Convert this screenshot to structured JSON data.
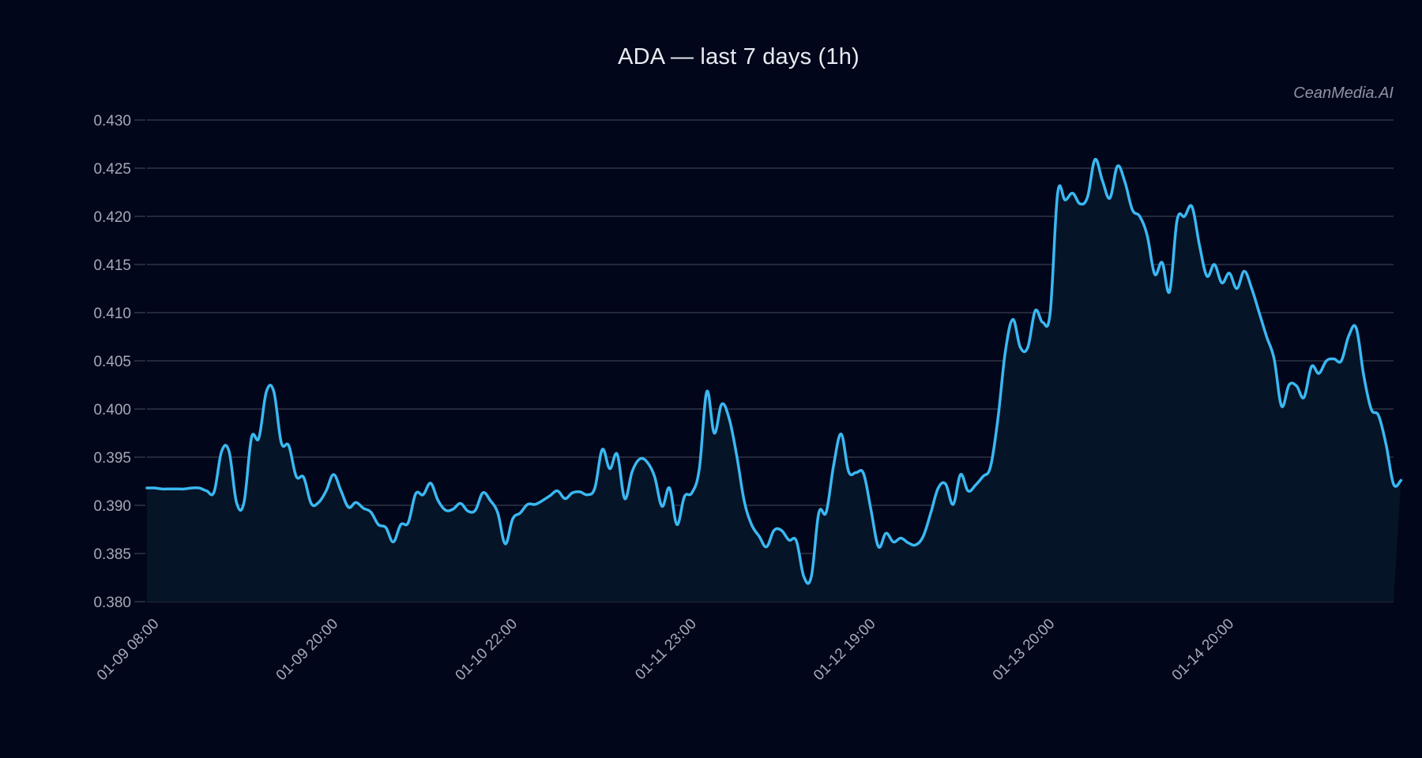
{
  "title": "ADA — last 7 days (1h)",
  "watermark": "CeanMedia.AI",
  "colors": {
    "background": "#02061a",
    "line": "#3ab8f2",
    "fill": "#061427",
    "grid": "#2e3546",
    "tick_text": "#a4a9b6"
  },
  "chart_data": {
    "type": "area",
    "title": "ADA — last 7 days (1h)",
    "xlabel": "",
    "ylabel": "",
    "ylim": [
      0.38,
      0.43
    ],
    "grid": true,
    "legend": null,
    "y_ticks": [
      "0.430",
      "0.425",
      "0.420",
      "0.415",
      "0.410",
      "0.405",
      "0.400",
      "0.395",
      "0.390",
      "0.385",
      "0.380"
    ],
    "x_ticks": [
      {
        "label": "01-09 08:00",
        "index": 0
      },
      {
        "label": "01-09 20:00",
        "index": 24
      },
      {
        "label": "01-10 22:00",
        "index": 48
      },
      {
        "label": "01-11 23:00",
        "index": 72
      },
      {
        "label": "01-12 19:00",
        "index": 96
      },
      {
        "label": "01-13 20:00",
        "index": 120
      },
      {
        "label": "01-14 20:00",
        "index": 144
      }
    ],
    "n_points": 168,
    "series": [
      {
        "name": "ADA",
        "values": [
          0.3918,
          0.3918,
          0.3917,
          0.3917,
          0.3917,
          0.3917,
          0.3918,
          0.3918,
          0.3915,
          0.3914,
          0.3956,
          0.3956,
          0.3903,
          0.3903,
          0.397,
          0.397,
          0.4018,
          0.4018,
          0.3965,
          0.3962,
          0.393,
          0.3929,
          0.3902,
          0.3903,
          0.3915,
          0.3932,
          0.3915,
          0.3898,
          0.3903,
          0.3897,
          0.3893,
          0.388,
          0.3877,
          0.3862,
          0.388,
          0.3882,
          0.3912,
          0.3911,
          0.3923,
          0.3905,
          0.3895,
          0.3896,
          0.3902,
          0.3894,
          0.3895,
          0.3913,
          0.3905,
          0.3892,
          0.386,
          0.3886,
          0.3892,
          0.3901,
          0.3901,
          0.3905,
          0.391,
          0.3915,
          0.3907,
          0.3913,
          0.3914,
          0.3911,
          0.3918,
          0.3958,
          0.3938,
          0.3953,
          0.3907,
          0.3935,
          0.3948,
          0.3945,
          0.393,
          0.3899,
          0.3918,
          0.388,
          0.3909,
          0.3913,
          0.3938,
          0.4018,
          0.3975,
          0.4005,
          0.399,
          0.3952,
          0.3905,
          0.388,
          0.3868,
          0.3857,
          0.3874,
          0.3874,
          0.3864,
          0.3863,
          0.3826,
          0.3826,
          0.3892,
          0.3893,
          0.3942,
          0.3974,
          0.3935,
          0.3934,
          0.3933,
          0.3895,
          0.3857,
          0.3871,
          0.3862,
          0.3866,
          0.3861,
          0.3859,
          0.3868,
          0.3892,
          0.3918,
          0.3922,
          0.3901,
          0.3932,
          0.3915,
          0.3921,
          0.393,
          0.394,
          0.399,
          0.406,
          0.4093,
          0.4064,
          0.4064,
          0.4102,
          0.409,
          0.41,
          0.4224,
          0.4217,
          0.4224,
          0.4213,
          0.422,
          0.4259,
          0.4237,
          0.4219,
          0.4252,
          0.4236,
          0.4207,
          0.42,
          0.418,
          0.414,
          0.4152,
          0.4122,
          0.4196,
          0.42,
          0.421,
          0.417,
          0.4138,
          0.415,
          0.4131,
          0.4141,
          0.4125,
          0.4143,
          0.4125,
          0.41,
          0.4075,
          0.4052,
          0.4003,
          0.4025,
          0.4024,
          0.4012,
          0.4044,
          0.4037,
          0.405,
          0.4052,
          0.405,
          0.4076,
          0.4084,
          0.4035,
          0.4,
          0.3993,
          0.3963,
          0.3922,
          0.3926
        ]
      }
    ]
  }
}
